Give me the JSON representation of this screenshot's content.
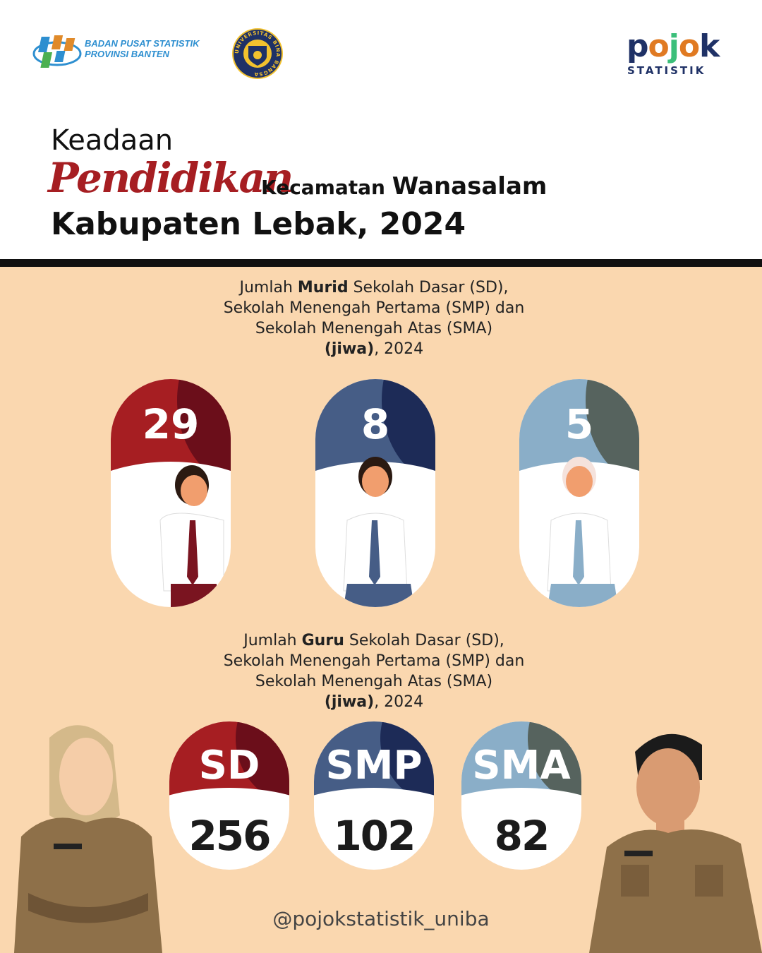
{
  "header": {
    "bps_logo_line1": "BADAN PUSAT STATISTIK",
    "bps_logo_line2": "PROVINSI BANTEN",
    "uniba_logo_text": "UNIVERSITAS BINA BANGSA",
    "pojok_logo": "pojok",
    "pojok_sub": "STATISTIK",
    "title_line1": "Keadaan",
    "title_highlight": "Pendidikan",
    "title_mid_a": "Kecamatan",
    "title_mid_b": "Wanasalam",
    "title_line3": "Kabupaten Lebak, 2024"
  },
  "students": {
    "caption_pre": "Jumlah ",
    "caption_bold": "Murid",
    "caption_post": " Sekolah Dasar (SD),",
    "caption_line2": "Sekolah Menengah Pertama (SMP) dan",
    "caption_line3": "Sekolah Menengah Atas (SMA)",
    "caption_unit": "(jiwa)",
    "caption_year": ", 2024",
    "items": [
      {
        "level": "SD",
        "value": "29",
        "color": "#A61E22",
        "shade": "#6B0E1A"
      },
      {
        "level": "SMP",
        "value": "8",
        "color": "#465D86",
        "shade": "#1D2B57"
      },
      {
        "level": "SMA",
        "value": "5",
        "color": "#8AAEC8",
        "shade": "#56635E"
      }
    ]
  },
  "teachers": {
    "caption_pre": "Jumlah ",
    "caption_bold": "Guru",
    "caption_post": " Sekolah Dasar (SD),",
    "caption_line2": "Sekolah Menengah Pertama (SMP) dan",
    "caption_line3": "Sekolah Menengah Atas (SMA)",
    "caption_unit": "(jiwa)",
    "caption_year": ", 2024",
    "items": [
      {
        "level": "SD",
        "value": "256"
      },
      {
        "level": "SMP",
        "value": "102"
      },
      {
        "level": "SMA",
        "value": "82"
      }
    ]
  },
  "footer": {
    "handle": "@pojokstatistik_uniba"
  },
  "colors": {
    "background": "#FAD7AF",
    "red": "#A61E22",
    "blue": "#465D86",
    "light_blue": "#8AAEC8"
  }
}
